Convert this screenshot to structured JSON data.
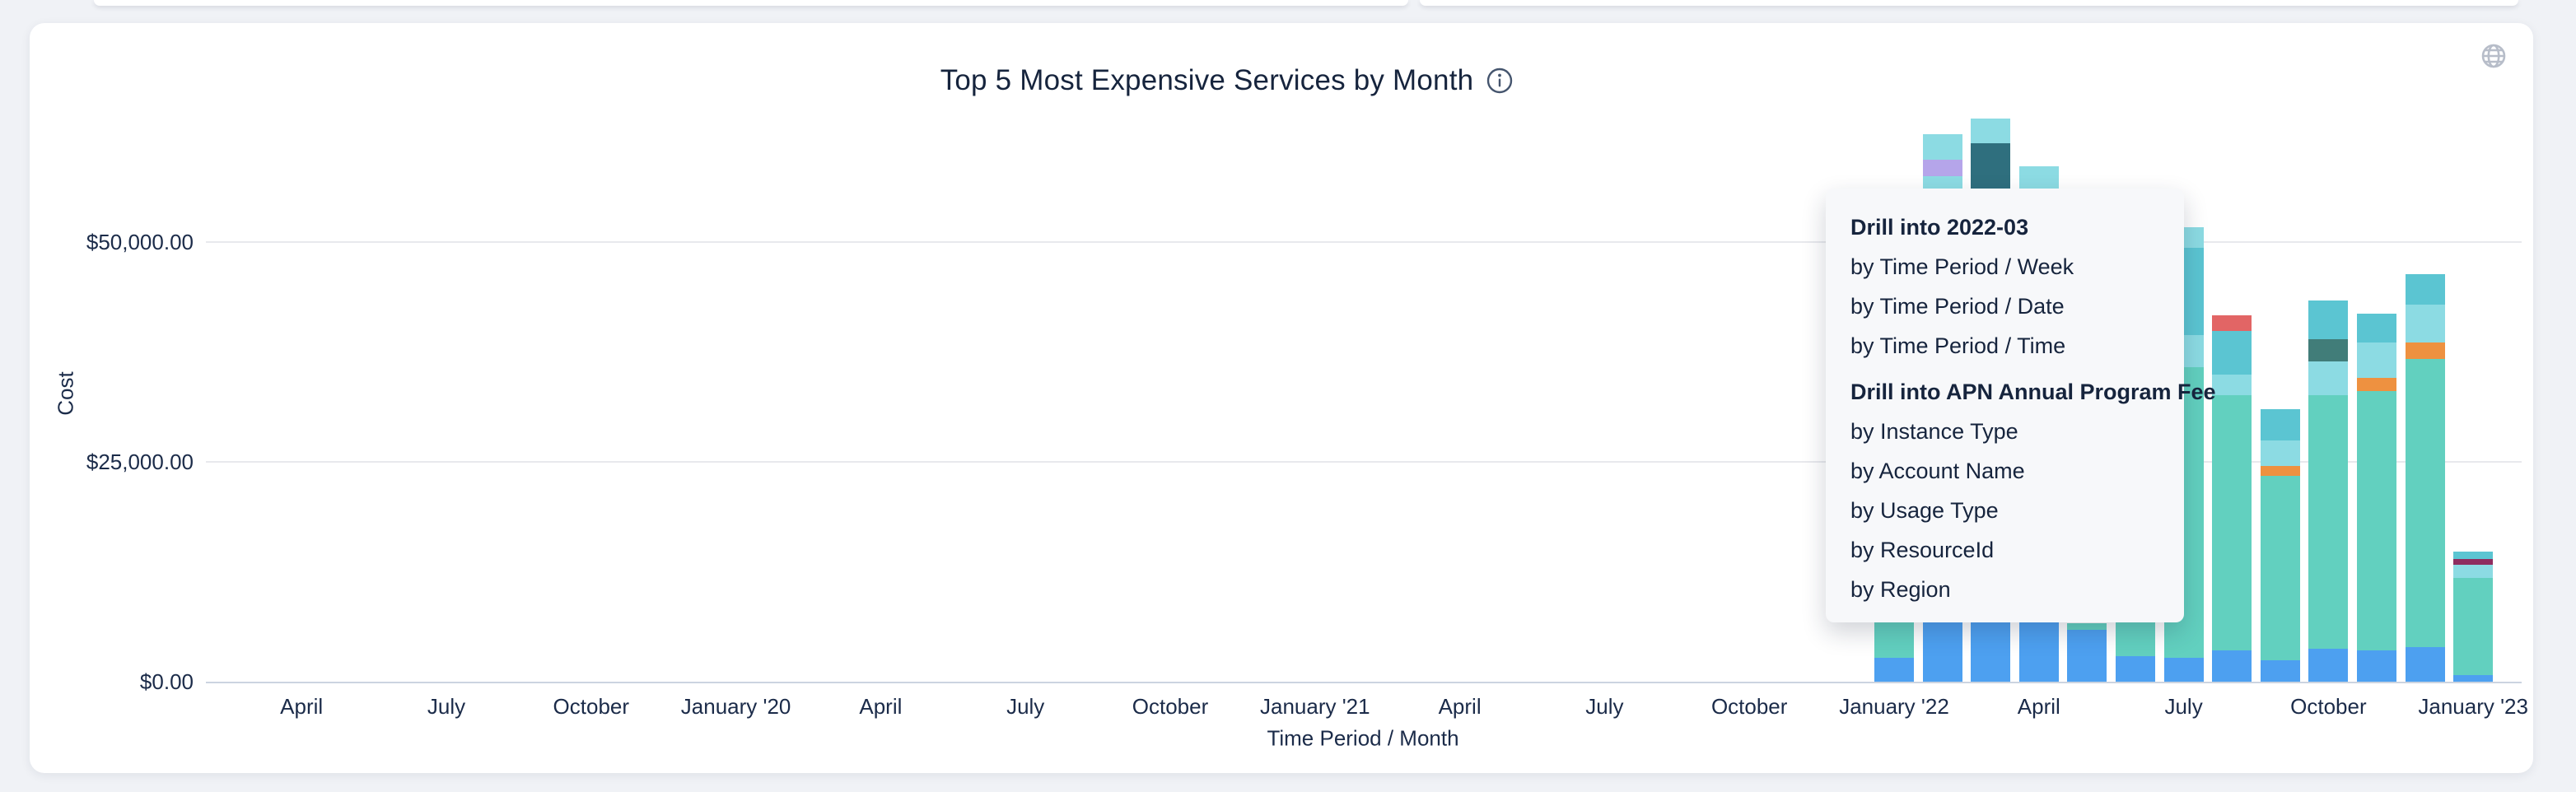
{
  "page": {
    "background": "#f0f2f6"
  },
  "card": {
    "title": "Top 5 Most Expensive Services by Month",
    "title_info_icon": "info-circle-icon",
    "widget_icon": "globe-icon"
  },
  "chart_data": {
    "type": "bar",
    "stacked": true,
    "title": "Top 5 Most Expensive Services by Month",
    "xlabel": "Time Period / Month",
    "ylabel": "Cost",
    "y_unit": "USD",
    "ylim": [
      0,
      68000
    ],
    "grid": "horizontal",
    "legend_visible": false,
    "y_ticks": [
      {
        "value": 0,
        "label": "$0.00"
      },
      {
        "value": 25000,
        "label": "$25,000.00"
      },
      {
        "value": 50000,
        "label": "$50,000.00"
      }
    ],
    "x_ticks": [
      {
        "label": "April",
        "month_offset": -33
      },
      {
        "label": "July",
        "month_offset": -30
      },
      {
        "label": "October",
        "month_offset": -27
      },
      {
        "label": "January '20",
        "month_offset": -24
      },
      {
        "label": "April",
        "month_offset": -21
      },
      {
        "label": "July",
        "month_offset": -18
      },
      {
        "label": "October",
        "month_offset": -15
      },
      {
        "label": "January '21",
        "month_offset": -12
      },
      {
        "label": "April",
        "month_offset": -9
      },
      {
        "label": "July",
        "month_offset": -6
      },
      {
        "label": "October",
        "month_offset": -3
      },
      {
        "label": "January '22",
        "month_offset": 0
      },
      {
        "label": "April",
        "month_offset": 3
      },
      {
        "label": "July",
        "month_offset": 6
      },
      {
        "label": "October",
        "month_offset": 9
      },
      {
        "label": "January '23",
        "month_offset": 12
      }
    ],
    "series_colors": {
      "blue": "#4da0f0",
      "seafoam": "#62d0bf",
      "cyan": "#8cdbe3",
      "mediumteal": "#5bc5d2",
      "darkteal": "#2f6f7e",
      "darkslate": "#417d79",
      "purple": "#b5a5ea",
      "orange": "#ee9140",
      "red": "#e26565",
      "maroon": "#8f2d5f"
    },
    "bars": [
      {
        "label": "2022-01",
        "segments": [
          {
            "c": "blue",
            "v": 2715
          },
          {
            "c": "seafoam",
            "v": 4400
          }
        ]
      },
      {
        "label": "2022-02",
        "segments": [
          {
            "c": "blue",
            "v": 7303
          },
          {
            "c": "seafoam",
            "v": 45131
          },
          {
            "c": "cyan",
            "v": 5056
          },
          {
            "c": "purple",
            "v": 1873
          },
          {
            "c": "cyan",
            "v": 2903
          }
        ]
      },
      {
        "label": "2022-03",
        "segments": [
          {
            "c": "blue",
            "v": 9738
          },
          {
            "c": "seafoam",
            "v": 30337
          },
          {
            "c": "darkteal",
            "v": 21161
          },
          {
            "c": "cyan",
            "v": 2809
          }
        ]
      },
      {
        "label": "2022-04",
        "segments": [
          {
            "c": "blue",
            "v": 7022
          },
          {
            "c": "seafoam",
            "v": 47097
          },
          {
            "c": "cyan",
            "v": 4494
          }
        ]
      },
      {
        "label": "2022-05",
        "segments": [
          {
            "c": "blue",
            "v": 5898
          },
          {
            "c": "seafoam",
            "v": 750
          }
        ]
      },
      {
        "label": "2022-06",
        "segments": [
          {
            "c": "blue",
            "v": 2903
          },
          {
            "c": "seafoam",
            "v": 4401
          }
        ]
      },
      {
        "label": "2022-07",
        "segments": [
          {
            "c": "blue",
            "v": 2715
          },
          {
            "c": "seafoam",
            "v": 33052
          },
          {
            "c": "cyan",
            "v": 3652
          },
          {
            "c": "mediumteal",
            "v": 9925
          },
          {
            "c": "cyan",
            "v": 2341
          }
        ]
      },
      {
        "label": "2022-08",
        "segments": [
          {
            "c": "blue",
            "v": 3558
          },
          {
            "c": "seafoam",
            "v": 29026
          },
          {
            "c": "cyan",
            "v": 2341
          },
          {
            "c": "mediumteal",
            "v": 4963
          },
          {
            "c": "red",
            "v": 1779
          }
        ]
      },
      {
        "label": "2022-09",
        "segments": [
          {
            "c": "blue",
            "v": 2434
          },
          {
            "c": "seafoam",
            "v": 20973
          },
          {
            "c": "orange",
            "v": 1124
          },
          {
            "c": "cyan",
            "v": 2903
          },
          {
            "c": "mediumteal",
            "v": 3558
          }
        ]
      },
      {
        "label": "2022-10",
        "segments": [
          {
            "c": "blue",
            "v": 3745
          },
          {
            "c": "seafoam",
            "v": 28839
          },
          {
            "c": "cyan",
            "v": 3839
          },
          {
            "c": "darkslate",
            "v": 2528
          },
          {
            "c": "mediumteal",
            "v": 4401
          }
        ]
      },
      {
        "label": "2022-11",
        "segments": [
          {
            "c": "blue",
            "v": 3558
          },
          {
            "c": "seafoam",
            "v": 29495
          },
          {
            "c": "orange",
            "v": 1498
          },
          {
            "c": "cyan",
            "v": 4026
          },
          {
            "c": "mediumteal",
            "v": 3277
          }
        ]
      },
      {
        "label": "2022-12",
        "segments": [
          {
            "c": "blue",
            "v": 3933
          },
          {
            "c": "seafoam",
            "v": 32771
          },
          {
            "c": "orange",
            "v": 1873
          },
          {
            "c": "cyan",
            "v": 4307
          },
          {
            "c": "mediumteal",
            "v": 3464
          }
        ]
      },
      {
        "label": "2023-01",
        "segments": [
          {
            "c": "blue",
            "v": 749
          },
          {
            "c": "seafoam",
            "v": 11049
          },
          {
            "c": "cyan",
            "v": 1498
          },
          {
            "c": "maroon",
            "v": 655
          },
          {
            "c": "mediumteal",
            "v": 843
          }
        ]
      }
    ]
  },
  "context_menu": {
    "groups": [
      {
        "header": "Drill into 2022-03",
        "items": [
          "by Time Period / Week",
          "by Time Period / Date",
          "by Time Period / Time"
        ]
      },
      {
        "header": "Drill into APN Annual Program Fee",
        "items": [
          "by Instance Type",
          "by Account Name",
          "by Usage Type",
          "by ResourceId",
          "by Region"
        ]
      }
    ]
  }
}
